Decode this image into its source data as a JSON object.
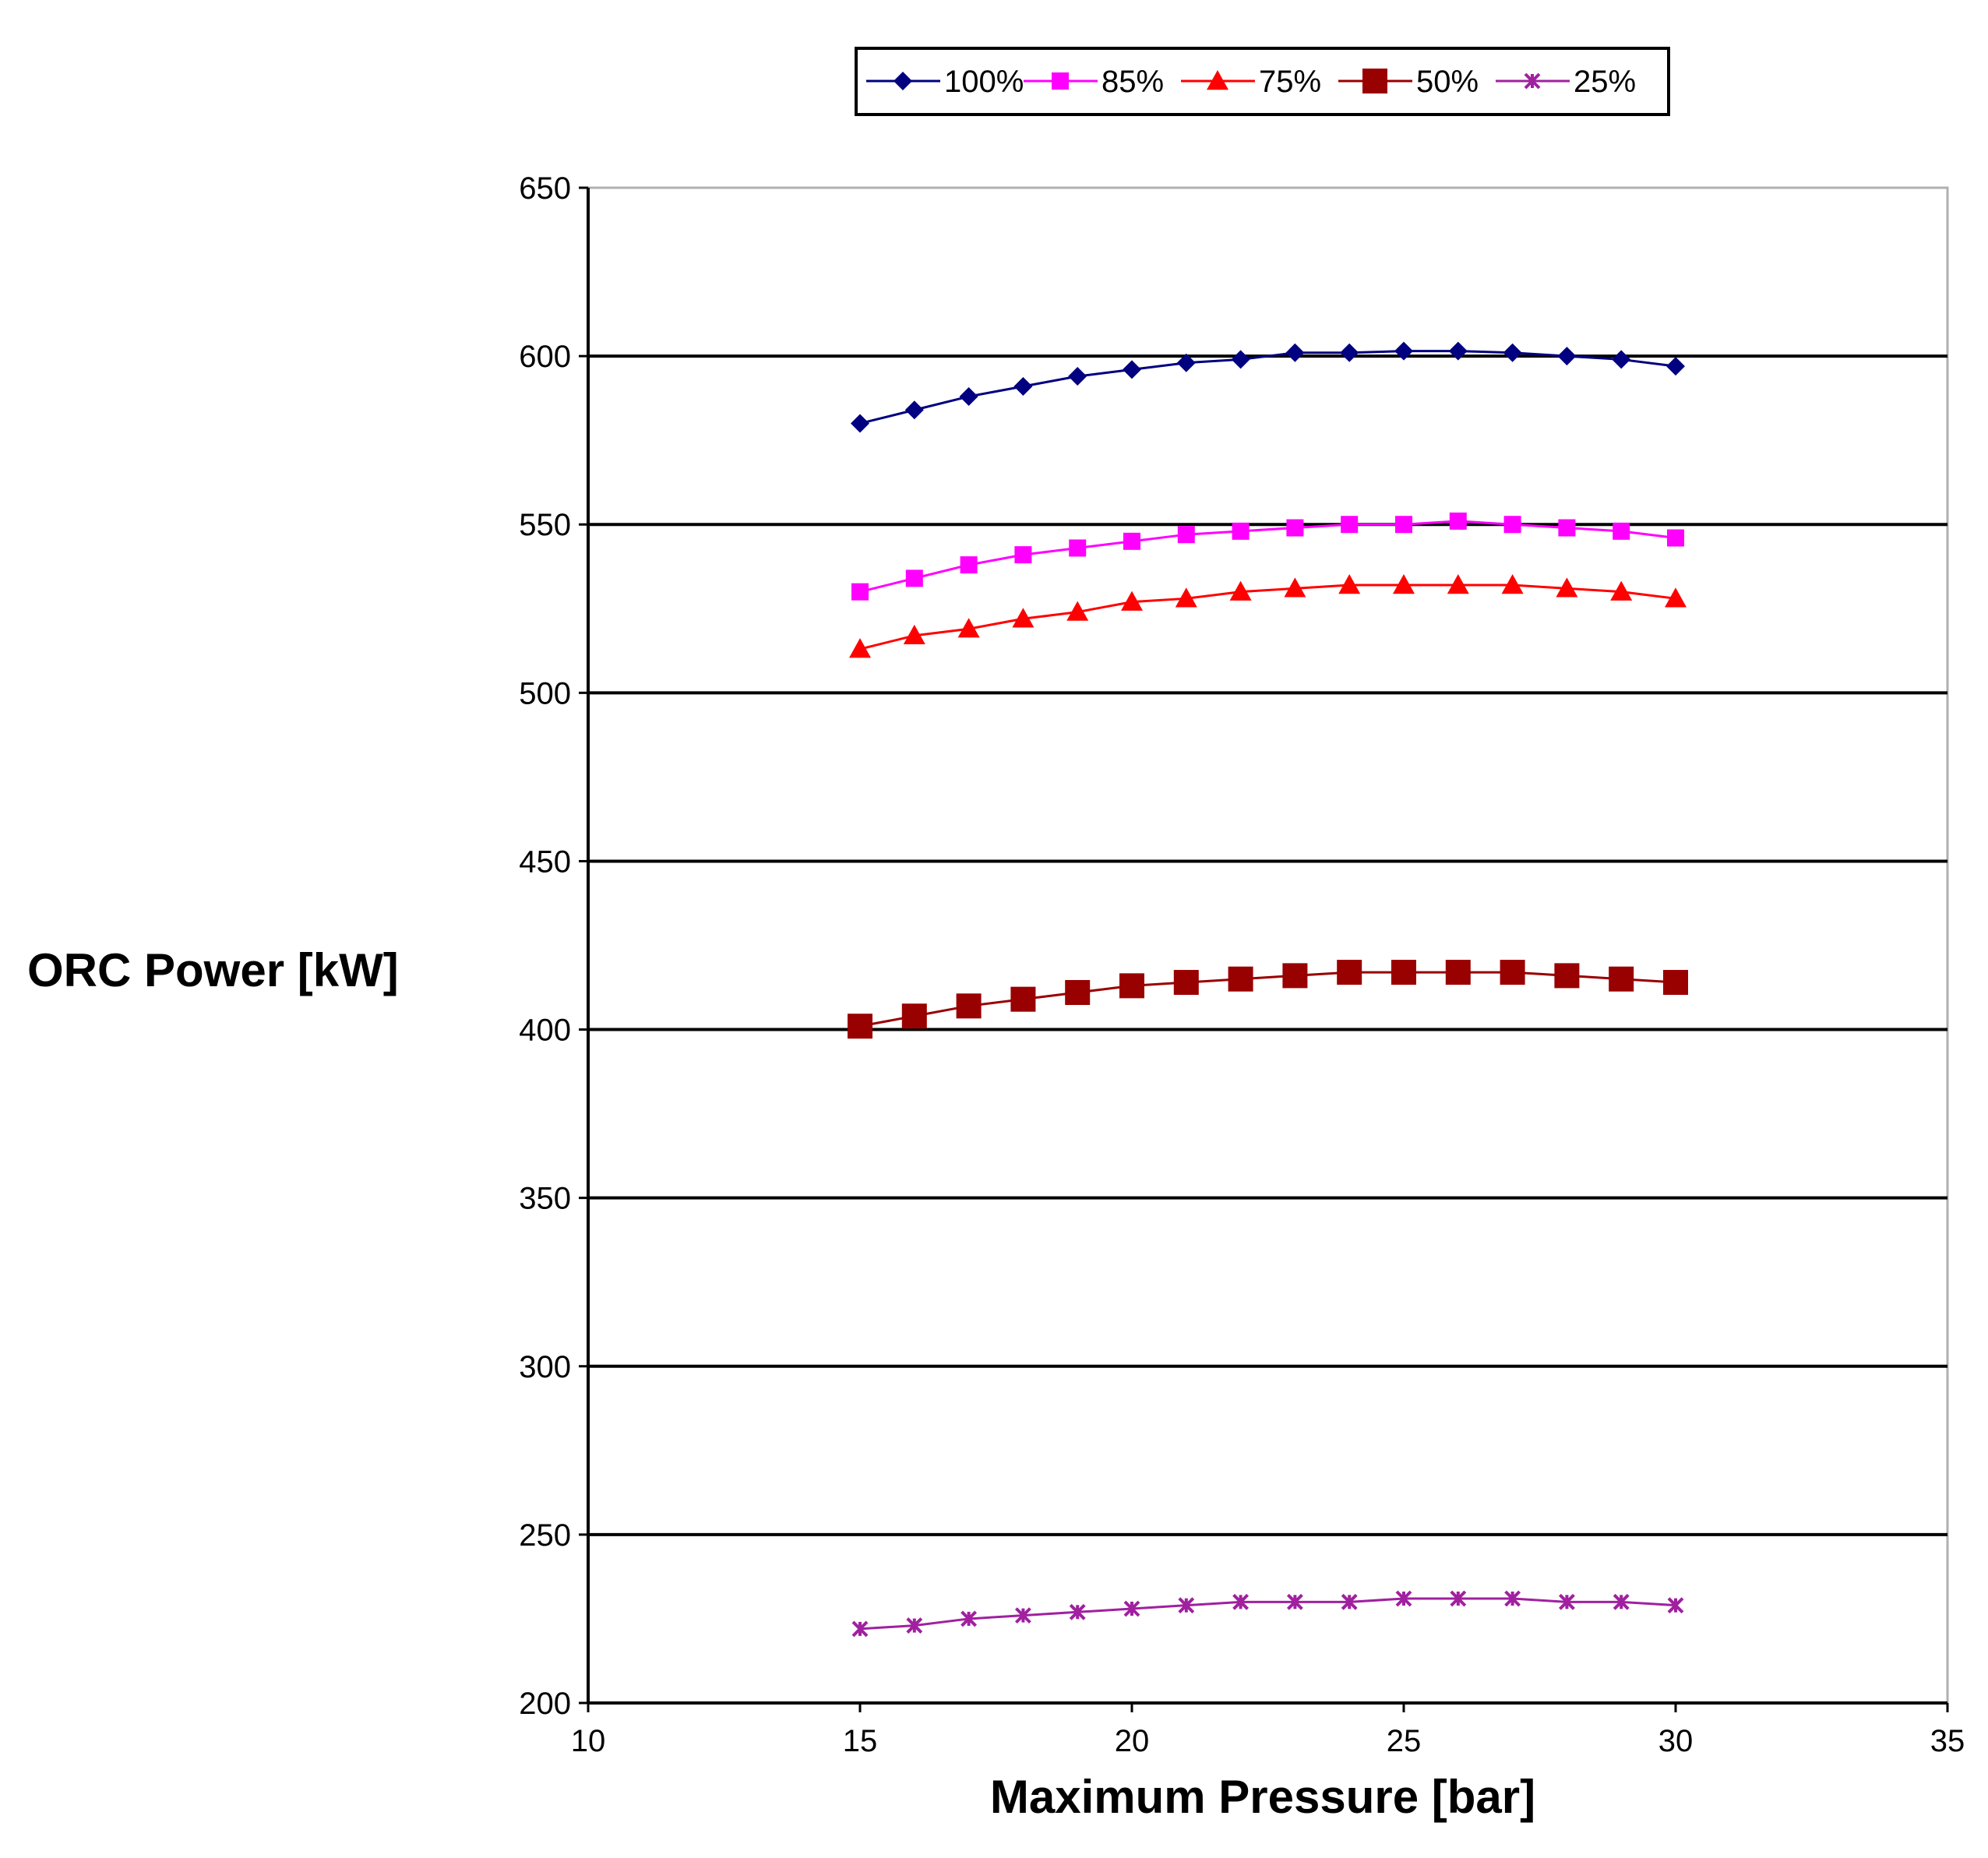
{
  "chart_data": {
    "type": "line",
    "title": "",
    "xlabel": "Maximum Pressure [bar]",
    "ylabel": "ORC Power [kW]",
    "xlim": [
      10,
      35
    ],
    "ylim": [
      200,
      650
    ],
    "x_ticks": [
      "10",
      "15",
      "20",
      "25",
      "30",
      "35"
    ],
    "y_ticks": [
      "650",
      "600",
      "550",
      "500",
      "450",
      "400",
      "350",
      "300",
      "250",
      "200"
    ],
    "grid": "horizontal major gridlines",
    "legend_position": "top",
    "x": [
      15,
      16,
      17,
      18,
      19,
      20,
      21,
      22,
      23,
      24,
      25,
      26,
      27,
      28,
      29,
      30
    ],
    "series": [
      {
        "name": "100%",
        "color": "#000080",
        "marker": "diamond",
        "values": [
          580,
          584,
          588,
          591,
          594,
          596,
          598,
          599,
          601,
          601,
          601.5,
          601.5,
          601,
          600,
          599,
          597
        ]
      },
      {
        "name": "85%",
        "color": "#FF00FF",
        "marker": "square",
        "values": [
          530,
          534,
          538,
          541,
          543,
          545,
          547,
          548,
          549,
          550,
          550,
          551,
          550,
          549,
          548,
          546
        ]
      },
      {
        "name": "75%",
        "color": "#FF0000",
        "marker": "triangle",
        "values": [
          513,
          517,
          519,
          522,
          524,
          527,
          528,
          530,
          531,
          532,
          532,
          532,
          532,
          531,
          530,
          528
        ]
      },
      {
        "name": "50%",
        "color": "#990000",
        "marker": "square-large",
        "values": [
          401,
          404,
          407,
          409,
          411,
          413,
          414,
          415,
          416,
          417,
          417,
          417,
          417,
          416,
          415,
          414
        ]
      },
      {
        "name": "25%",
        "color": "#A020A0",
        "marker": "star",
        "values": [
          222,
          223,
          225,
          226,
          227,
          228,
          229,
          230,
          230,
          230,
          231,
          231,
          231,
          230,
          230,
          229
        ]
      }
    ]
  }
}
